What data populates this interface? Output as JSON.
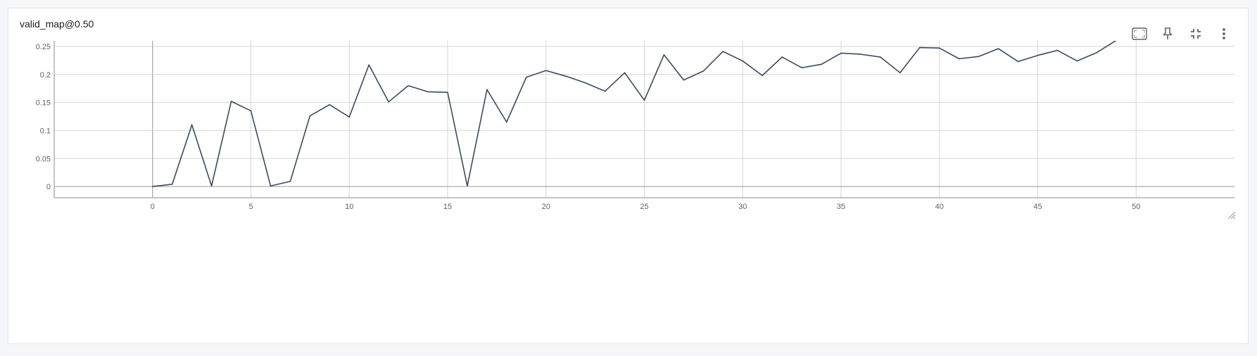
{
  "card": {
    "title": "valid_map@0.50"
  },
  "toolbar": {
    "icons": [
      "fit-domain-icon",
      "pin-icon",
      "collapse-icon",
      "more-vert-icon"
    ]
  },
  "colors": {
    "line": "#3b4a61",
    "grid": "#d6d6d6",
    "axis": "#8a8a8a",
    "icon": "#5f6368"
  },
  "chart_data": {
    "type": "line",
    "title": "valid_map@0.50",
    "xlim": [
      -5,
      55
    ],
    "ylim": [
      -0.02,
      0.26
    ],
    "xticks": [
      0,
      5,
      10,
      15,
      20,
      25,
      30,
      35,
      40,
      45,
      50
    ],
    "xtick_labels": [
      "0",
      "5",
      "10",
      "15",
      "20",
      "25",
      "30",
      "35",
      "40",
      "45",
      "50"
    ],
    "yticks": [
      0,
      0.05,
      0.1,
      0.15,
      0.2,
      0.25
    ],
    "ytick_labels": [
      "0",
      "0.05",
      "0.1",
      "0.15",
      "0.2",
      "0.25"
    ],
    "grid": true,
    "series": [
      {
        "x": [
          0,
          1,
          2,
          3,
          4,
          5,
          6,
          7,
          8,
          9,
          10,
          11,
          12,
          13,
          14,
          15,
          16,
          17,
          18,
          19,
          20,
          21,
          22,
          23,
          24,
          25,
          26,
          27,
          28,
          29,
          30,
          31,
          32,
          33,
          34,
          35,
          36,
          37,
          38,
          39,
          40,
          41,
          42,
          43,
          44,
          45,
          46,
          47,
          48,
          49
        ],
        "y": [
          0,
          0.004,
          0.11,
          0.001,
          0.152,
          0.135,
          0.001,
          0.009,
          0.126,
          0.146,
          0.124,
          0.217,
          0.151,
          0.18,
          0.169,
          0.168,
          0.001,
          0.173,
          0.115,
          0.195,
          0.207,
          0.197,
          0.185,
          0.17,
          0.203,
          0.154,
          0.235,
          0.19,
          0.206,
          0.241,
          0.224,
          0.198,
          0.231,
          0.212,
          0.218,
          0.238,
          0.236,
          0.231,
          0.203,
          0.248,
          0.247,
          0.228,
          0.232,
          0.246,
          0.223,
          0.234,
          0.243,
          0.224,
          0.239,
          0.261
        ]
      }
    ]
  }
}
